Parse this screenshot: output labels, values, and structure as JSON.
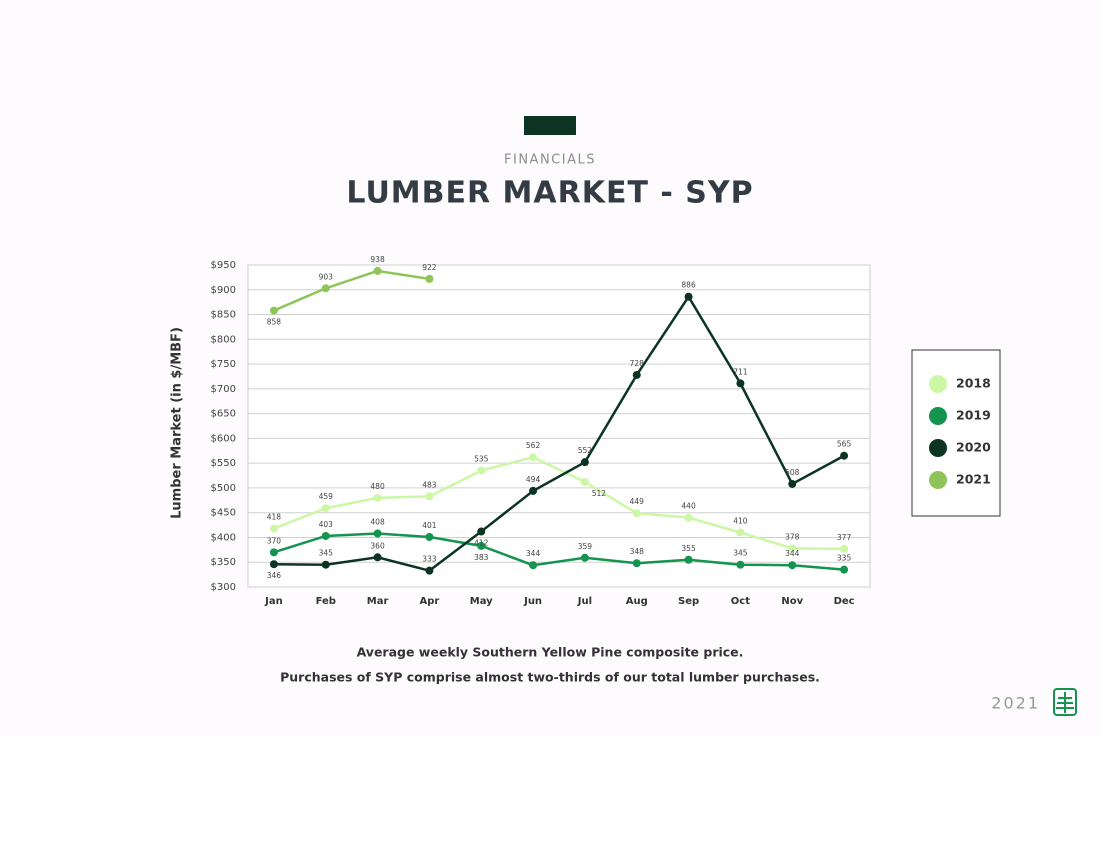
{
  "header": {
    "kicker": "FINANCIALS",
    "footer_year": "2021"
  },
  "chart_data": {
    "type": "line",
    "title": "LUMBER MARKET - SYP",
    "ylabel": "Lumber Market  (in $/MBF)",
    "captions": [
      "Average weekly Southern Yellow Pine composite price.",
      "Purchases of SYP comprise almost two-thirds of our total lumber purchases."
    ],
    "categories": [
      "Jan",
      "Feb",
      "Mar",
      "Apr",
      "May",
      "Jun",
      "Jul",
      "Aug",
      "Sep",
      "Oct",
      "Nov",
      "Dec"
    ],
    "series": [
      {
        "name": "2018",
        "color": "#ccf7a4",
        "values": [
          418,
          459,
          480,
          483,
          535,
          562,
          512,
          449,
          440,
          410,
          378,
          377
        ]
      },
      {
        "name": "2019",
        "color": "#14944f",
        "values": [
          370,
          403,
          408,
          401,
          383,
          344,
          359,
          348,
          355,
          345,
          344,
          335
        ]
      },
      {
        "name": "2020",
        "color": "#0b3522",
        "values": [
          346,
          345,
          360,
          333,
          412,
          494,
          552,
          728,
          886,
          711,
          508,
          565
        ]
      },
      {
        "name": "2021",
        "color": "#8fc45a",
        "values": [
          858,
          903,
          938,
          922,
          null,
          null,
          null,
          null,
          null,
          null,
          null,
          null
        ]
      }
    ],
    "ylim": [
      300,
      950
    ],
    "yticks": [
      {
        "value": 300,
        "label": "$300"
      },
      {
        "value": 350,
        "label": "$350"
      },
      {
        "value": 400,
        "label": "$400"
      },
      {
        "value": 450,
        "label": "$450"
      },
      {
        "value": 500,
        "label": "$500"
      },
      {
        "value": 550,
        "label": "$550"
      },
      {
        "value": 600,
        "label": "$600"
      },
      {
        "value": 650,
        "label": "$650"
      },
      {
        "value": 700,
        "label": "$700"
      },
      {
        "value": 750,
        "label": "$750"
      },
      {
        "value": 800,
        "label": "$800"
      },
      {
        "value": 850,
        "label": "$850"
      },
      {
        "value": 900,
        "label": "$900"
      },
      {
        "value": 950,
        "label": "$950"
      }
    ],
    "grid": true,
    "legend": "right"
  }
}
